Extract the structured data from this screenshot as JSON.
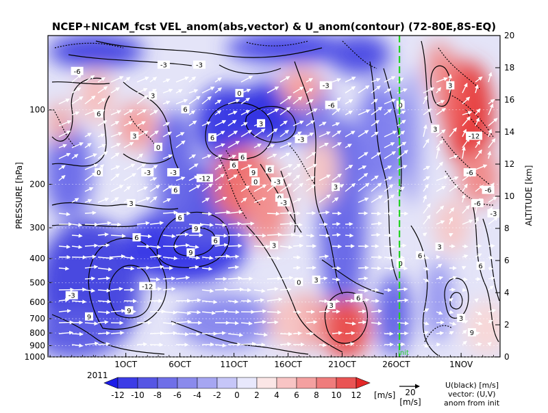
{
  "chart_data": {
    "type": "heatmap",
    "title": "NCEP+NICAM_fcst VEL_anom(abs,vector) & U_anom(contour)   (72-80E,8S-EQ)",
    "ylabel_left": "PRESSURE [hPa]",
    "ylabel_right": "ALTITUDE [km]",
    "year_label": "2011",
    "x_ticks": [
      {
        "day": 1,
        "label": "1OCT"
      },
      {
        "day": 6,
        "label": "6OCT"
      },
      {
        "day": 11,
        "label": "11OCT"
      },
      {
        "day": 16,
        "label": "16OCT"
      },
      {
        "day": 21,
        "label": "21OCT"
      },
      {
        "day": 26,
        "label": "26OCT"
      },
      {
        "day": 32,
        "label": "1NOV"
      }
    ],
    "x_range_days": [
      -6.2,
      35.6
    ],
    "pressure_ticks": [
      100,
      200,
      300,
      400,
      500,
      600,
      700,
      800,
      900,
      1000
    ],
    "pressure_range": [
      50,
      1000
    ],
    "altitude_ticks": [
      0,
      2,
      4,
      6,
      8,
      10,
      12,
      14,
      16,
      18,
      20
    ],
    "init_day": 26.3,
    "init_label": "init",
    "colorbar": {
      "ticks": [
        -12,
        -10,
        -8,
        -6,
        -4,
        -2,
        0,
        2,
        4,
        6,
        8,
        10,
        12
      ],
      "unit": "[m/s]",
      "colors": [
        "#1c1ce8",
        "#3c3ce6",
        "#5656e4",
        "#6f6fe8",
        "#8a8aec",
        "#a6a6f2",
        "#c6c6f8",
        "#e8e8fc",
        "#fbe6e6",
        "#f8c4c4",
        "#f4a0a0",
        "#ef7c7c",
        "#e95454",
        "#e42828"
      ]
    },
    "reference_vector": {
      "value": "20",
      "unit": "[m/s]"
    },
    "legend_lines": [
      "U(black) [m/s]",
      "vector: (U,V)",
      "anom from init"
    ],
    "contour_labels": [
      {
        "day": -3.5,
        "p": 70,
        "text": "-6"
      },
      {
        "day": 4.5,
        "p": 66,
        "text": "-3"
      },
      {
        "day": 7.8,
        "p": 66,
        "text": "-3"
      },
      {
        "day": 3.5,
        "p": 88,
        "text": "3"
      },
      {
        "day": 11.5,
        "p": 86,
        "text": "0"
      },
      {
        "day": 19.5,
        "p": 80,
        "text": "-3"
      },
      {
        "day": -1.5,
        "p": 104,
        "text": "6"
      },
      {
        "day": 6.5,
        "p": 100,
        "text": "6"
      },
      {
        "day": 13.5,
        "p": 114,
        "text": "3"
      },
      {
        "day": 20.0,
        "p": 96,
        "text": "-6"
      },
      {
        "day": 1.8,
        "p": 128,
        "text": "3"
      },
      {
        "day": 9.0,
        "p": 130,
        "text": "6"
      },
      {
        "day": 17.2,
        "p": 132,
        "text": "-3"
      },
      {
        "day": 4.0,
        "p": 142,
        "text": "0"
      },
      {
        "day": 11.8,
        "p": 156,
        "text": "6"
      },
      {
        "day": 11.0,
        "p": 168,
        "text": "6"
      },
      {
        "day": 12.8,
        "p": 180,
        "text": "9"
      },
      {
        "day": 14.3,
        "p": 175,
        "text": "6"
      },
      {
        "day": -1.5,
        "p": 180,
        "text": "0"
      },
      {
        "day": 3.0,
        "p": 180,
        "text": "-3"
      },
      {
        "day": 5.4,
        "p": 180,
        "text": "-3"
      },
      {
        "day": 8.3,
        "p": 190,
        "text": "-12"
      },
      {
        "day": 15.0,
        "p": 196,
        "text": "-3"
      },
      {
        "day": 13.0,
        "p": 196,
        "text": "0"
      },
      {
        "day": 15.2,
        "p": 228,
        "text": "0"
      },
      {
        "day": 15.6,
        "p": 238,
        "text": "-3"
      },
      {
        "day": 5.6,
        "p": 212,
        "text": "6"
      },
      {
        "day": 20.4,
        "p": 206,
        "text": "3"
      },
      {
        "day": 1.5,
        "p": 240,
        "text": "3"
      },
      {
        "day": 6.0,
        "p": 274,
        "text": "6"
      },
      {
        "day": 7.5,
        "p": 304,
        "text": "9"
      },
      {
        "day": 9.3,
        "p": 340,
        "text": "6"
      },
      {
        "day": 2.0,
        "p": 330,
        "text": "6"
      },
      {
        "day": 7.0,
        "p": 380,
        "text": "9"
      },
      {
        "day": 3.0,
        "p": 520,
        "text": "-12"
      },
      {
        "day": -4.0,
        "p": 566,
        "text": "-3"
      },
      {
        "day": 1.3,
        "p": 652,
        "text": "9"
      },
      {
        "day": -2.4,
        "p": 690,
        "text": "9"
      },
      {
        "day": 14.7,
        "p": 355,
        "text": "3"
      },
      {
        "day": 17.0,
        "p": 500,
        "text": "0"
      },
      {
        "day": 18.6,
        "p": 490,
        "text": "3"
      },
      {
        "day": 22.5,
        "p": 580,
        "text": "6"
      },
      {
        "day": 20.0,
        "p": 620,
        "text": "3"
      },
      {
        "day": 26.4,
        "p": 96,
        "text": "0"
      },
      {
        "day": 26.4,
        "p": 420,
        "text": "0"
      },
      {
        "day": 28.2,
        "p": 390,
        "text": "6"
      },
      {
        "day": 29.6,
        "p": 120,
        "text": "3"
      },
      {
        "day": 31.0,
        "p": 80,
        "text": "3"
      },
      {
        "day": 33.2,
        "p": 128,
        "text": "-12"
      },
      {
        "day": 32.8,
        "p": 180,
        "text": "-6"
      },
      {
        "day": 34.5,
        "p": 212,
        "text": "-6"
      },
      {
        "day": 33.5,
        "p": 240,
        "text": "-6"
      },
      {
        "day": 35.0,
        "p": 264,
        "text": "-3"
      },
      {
        "day": 30.0,
        "p": 360,
        "text": "3"
      },
      {
        "day": 33.8,
        "p": 430,
        "text": "6"
      },
      {
        "day": 32.0,
        "p": 700,
        "text": "3"
      },
      {
        "day": 33.0,
        "p": 800,
        "text": "9"
      }
    ]
  }
}
